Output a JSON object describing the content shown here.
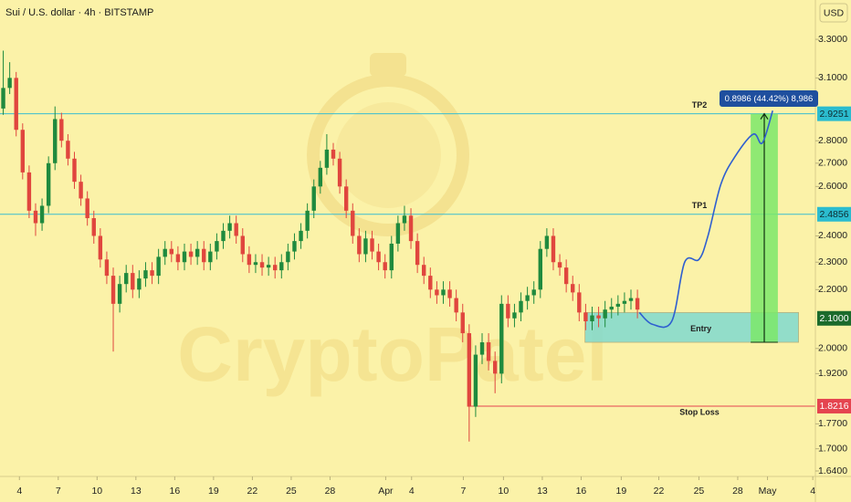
{
  "chart_data": {
    "type": "candlestick",
    "title": "Sui / U.S. dollar · 4h · BITSTAMP",
    "currency": "USD",
    "watermark": "CryptoPatel",
    "log_scale": true,
    "grid": false,
    "up_color": "#1f8a3e",
    "down_color": "#e0463e",
    "xlim": [
      -1.5,
      61.5
    ],
    "ylim": [
      1.6255,
      3.517
    ],
    "xticks": [
      {
        "value": 0,
        "label": "4"
      },
      {
        "value": 3,
        "label": "7"
      },
      {
        "value": 6,
        "label": "10"
      },
      {
        "value": 9,
        "label": "13"
      },
      {
        "value": 12,
        "label": "16"
      },
      {
        "value": 15,
        "label": "19"
      },
      {
        "value": 18,
        "label": "22"
      },
      {
        "value": 21,
        "label": "25"
      },
      {
        "value": 24,
        "label": "28"
      },
      {
        "value": 28.3,
        "label": "Apr"
      },
      {
        "value": 30.3,
        "label": "4"
      },
      {
        "value": 34.3,
        "label": "7"
      },
      {
        "value": 37.4,
        "label": "10"
      },
      {
        "value": 40.4,
        "label": "13"
      },
      {
        "value": 43.4,
        "label": "16"
      },
      {
        "value": 46.5,
        "label": "19"
      },
      {
        "value": 49.4,
        "label": "22"
      },
      {
        "value": 52.5,
        "label": "25"
      },
      {
        "value": 55.5,
        "label": "28"
      },
      {
        "value": 57.8,
        "label": "May"
      },
      {
        "value": 61.3,
        "label": "4"
      }
    ],
    "yticks": [
      {
        "value": 3.3,
        "label": "3.3000"
      },
      {
        "value": 3.1,
        "label": "3.1000"
      },
      {
        "value": 2.8,
        "label": "2.8000"
      },
      {
        "value": 2.7,
        "label": "2.7000"
      },
      {
        "value": 2.6,
        "label": "2.6000"
      },
      {
        "value": 2.4,
        "label": "2.4000"
      },
      {
        "value": 2.3,
        "label": "2.3000"
      },
      {
        "value": 2.2,
        "label": "2.2000"
      },
      {
        "value": 2,
        "label": "2.0000"
      },
      {
        "value": 1.92,
        "label": "1.9200"
      },
      {
        "value": 1.77,
        "label": "1.7700"
      },
      {
        "value": 1.7,
        "label": "1.7000"
      },
      {
        "value": 1.64,
        "label": "1.6400"
      }
    ],
    "x": [
      -1.25,
      -0.75,
      -0.25,
      0.25,
      0.75,
      1.25,
      1.75,
      2.25,
      2.75,
      3.25,
      3.75,
      4.25,
      4.75,
      5.25,
      5.75,
      6.25,
      6.75,
      7.25,
      7.75,
      8.25,
      8.75,
      9.25,
      9.75,
      10.25,
      10.75,
      11.25,
      11.75,
      12.25,
      12.75,
      13.25,
      13.75,
      14.25,
      14.75,
      15.25,
      15.75,
      16.25,
      16.75,
      17.25,
      17.75,
      18.25,
      18.75,
      19.25,
      19.75,
      20.25,
      20.75,
      21.25,
      21.75,
      22.25,
      22.75,
      23.25,
      23.75,
      24.25,
      24.75,
      25.25,
      25.75,
      26.25,
      26.75,
      27.25,
      27.75,
      28.25,
      28.75,
      29.25,
      29.75,
      30.25,
      30.75,
      31.25,
      31.75,
      32.25,
      32.75,
      33.25,
      33.75,
      34.25,
      34.75,
      35.25,
      35.75,
      36.25,
      36.75,
      37.25,
      37.75,
      38.25,
      38.75,
      39.25,
      39.75,
      40.25,
      40.75,
      41.25,
      41.75,
      42.25,
      42.75,
      43.25,
      43.75,
      44.25,
      44.75,
      45.25,
      45.75,
      46.25,
      46.75,
      47.25,
      47.75
    ],
    "open": [
      2.95,
      3.05,
      3.1,
      2.85,
      2.66,
      2.5,
      2.45,
      2.52,
      2.7,
      2.9,
      2.8,
      2.72,
      2.62,
      2.55,
      2.47,
      2.4,
      2.31,
      2.25,
      2.15,
      2.22,
      2.26,
      2.2,
      2.24,
      2.27,
      2.25,
      2.32,
      2.35,
      2.33,
      2.3,
      2.34,
      2.32,
      2.35,
      2.3,
      2.34,
      2.38,
      2.42,
      2.45,
      2.4,
      2.33,
      2.29,
      2.3,
      2.28,
      2.29,
      2.27,
      2.3,
      2.34,
      2.38,
      2.42,
      2.5,
      2.6,
      2.68,
      2.76,
      2.72,
      2.6,
      2.5,
      2.4,
      2.33,
      2.39,
      2.34,
      2.3,
      2.27,
      2.37,
      2.45,
      2.48,
      2.38,
      2.29,
      2.25,
      2.2,
      2.18,
      2.2,
      2.17,
      2.12,
      2.05,
      1.82,
      1.98,
      2.02,
      1.96,
      1.92,
      2.15,
      2.1,
      2.12,
      2.16,
      2.18,
      2.2,
      2.35,
      2.4,
      2.3,
      2.28,
      2.22,
      2.19,
      2.12,
      2.09,
      2.11,
      2.1,
      2.13,
      2.14,
      2.15,
      2.16,
      2.17
    ],
    "high": [
      3.24,
      3.18,
      3.13,
      2.88,
      2.69,
      2.53,
      2.55,
      2.73,
      2.96,
      2.93,
      2.83,
      2.75,
      2.65,
      2.58,
      2.5,
      2.43,
      2.34,
      2.28,
      2.25,
      2.29,
      2.29,
      2.27,
      2.3,
      2.3,
      2.35,
      2.38,
      2.38,
      2.36,
      2.37,
      2.37,
      2.38,
      2.38,
      2.37,
      2.41,
      2.45,
      2.48,
      2.48,
      2.43,
      2.36,
      2.33,
      2.33,
      2.32,
      2.32,
      2.33,
      2.37,
      2.41,
      2.45,
      2.53,
      2.63,
      2.71,
      2.83,
      2.79,
      2.75,
      2.63,
      2.53,
      2.43,
      2.42,
      2.42,
      2.37,
      2.33,
      2.4,
      2.48,
      2.52,
      2.51,
      2.41,
      2.32,
      2.28,
      2.23,
      2.23,
      2.23,
      2.2,
      2.15,
      2.08,
      2.01,
      2.05,
      2.05,
      1.99,
      2.18,
      2.18,
      2.15,
      2.19,
      2.21,
      2.23,
      2.38,
      2.43,
      2.43,
      2.33,
      2.31,
      2.25,
      2.22,
      2.15,
      2.14,
      2.14,
      2.16,
      2.17,
      2.18,
      2.19,
      2.2,
      2.2
    ],
    "low": [
      2.92,
      3.02,
      2.82,
      2.63,
      2.47,
      2.4,
      2.42,
      2.49,
      2.67,
      2.77,
      2.69,
      2.59,
      2.52,
      2.44,
      2.37,
      2.28,
      2.22,
      1.99,
      2.12,
      2.19,
      2.17,
      2.17,
      2.21,
      2.22,
      2.22,
      2.29,
      2.3,
      2.27,
      2.27,
      2.29,
      2.29,
      2.27,
      2.27,
      2.31,
      2.35,
      2.39,
      2.37,
      2.3,
      2.26,
      2.26,
      2.25,
      2.25,
      2.24,
      2.24,
      2.27,
      2.31,
      2.35,
      2.39,
      2.47,
      2.57,
      2.65,
      2.69,
      2.57,
      2.47,
      2.37,
      2.3,
      2.3,
      2.31,
      2.27,
      2.24,
      2.24,
      2.34,
      2.42,
      2.35,
      2.26,
      2.22,
      2.17,
      2.15,
      2.15,
      2.14,
      2.09,
      2.02,
      1.72,
      1.79,
      1.95,
      1.93,
      1.86,
      1.89,
      2.07,
      2.07,
      2.09,
      2.13,
      2.15,
      2.17,
      2.32,
      2.27,
      2.25,
      2.19,
      2.16,
      2.09,
      2.06,
      2.06,
      2.07,
      2.07,
      2.1,
      2.11,
      2.12,
      2.13,
      2.1
    ],
    "close": [
      3.05,
      3.1,
      2.85,
      2.66,
      2.5,
      2.45,
      2.52,
      2.7,
      2.9,
      2.8,
      2.72,
      2.62,
      2.55,
      2.47,
      2.4,
      2.31,
      2.25,
      2.15,
      2.22,
      2.26,
      2.2,
      2.24,
      2.27,
      2.25,
      2.32,
      2.35,
      2.33,
      2.3,
      2.34,
      2.32,
      2.35,
      2.3,
      2.34,
      2.38,
      2.42,
      2.45,
      2.4,
      2.33,
      2.29,
      2.3,
      2.28,
      2.29,
      2.27,
      2.3,
      2.34,
      2.38,
      2.42,
      2.5,
      2.6,
      2.68,
      2.76,
      2.72,
      2.6,
      2.5,
      2.4,
      2.33,
      2.39,
      2.34,
      2.3,
      2.27,
      2.37,
      2.45,
      2.48,
      2.38,
      2.29,
      2.25,
      2.2,
      2.18,
      2.2,
      2.17,
      2.12,
      2.05,
      1.82,
      1.98,
      2.02,
      1.96,
      1.92,
      2.15,
      2.1,
      2.12,
      2.16,
      2.18,
      2.2,
      2.35,
      2.4,
      2.3,
      2.28,
      2.22,
      2.19,
      2.12,
      2.09,
      2.11,
      2.1,
      2.13,
      2.14,
      2.15,
      2.16,
      2.17,
      2.13
    ],
    "levels": [
      {
        "name": "TP2",
        "value": 2.9251,
        "color": "#3bbdd0",
        "label_color": "#2bbccf",
        "text_color": "#0f2b30"
      },
      {
        "name": "TP1",
        "value": 2.4856,
        "color": "#3bbdd0",
        "label_color": "#2bbccf",
        "text_color": "#0f2b30"
      },
      {
        "name": "Stop Loss",
        "value": 1.8216,
        "color": "#e5444f",
        "label_color": "#e5444f",
        "text_color": "#ffffff",
        "x_start": 34.8
      }
    ],
    "entry": {
      "name": "Entry",
      "value": 2.1,
      "value_label": "2.1000",
      "zone": [
        2.02,
        2.12
      ],
      "x_range": [
        43.7,
        60.2
      ],
      "color": "#7fd9cf",
      "label_color": "#1b6b2c",
      "text_color": "#ffffff"
    },
    "target_box": {
      "x_range": [
        56.5,
        58.6
      ],
      "color": "#7be86a"
    },
    "measure_label": "0.8986 (44.42%) 8,986",
    "projection": {
      "color": "#2f5fd0",
      "x": [
        47.9,
        48.9,
        50.4,
        51.4,
        52.5,
        53.2,
        54.2,
        55.3,
        56.7,
        57.4,
        58.2
      ],
      "values": [
        2.12,
        2.08,
        2.09,
        2.3,
        2.31,
        2.4,
        2.61,
        2.73,
        2.83,
        2.79,
        2.94
      ]
    }
  }
}
